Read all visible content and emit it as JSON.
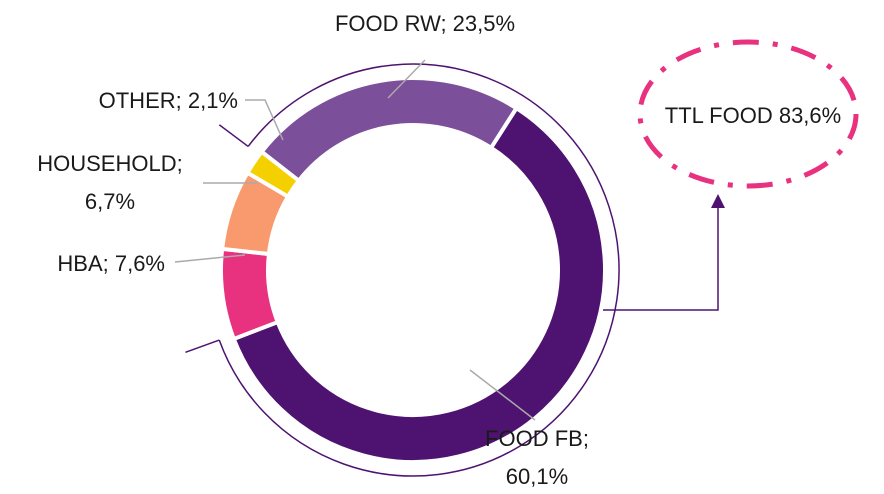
{
  "chart_data": {
    "type": "donut",
    "values": [
      23.5,
      60.1,
      7.6,
      6.7,
      2.1
    ],
    "value_labels": [
      "FOOD RW; 23,5%",
      "FOOD FB; 60,1%",
      "HBA; 7,6%",
      "HOUSEHOLD; 6,7%",
      "OTHER; 2,1%"
    ],
    "colors": [
      "#7b4f9a",
      "#4e1370",
      "#e8317f",
      "#f99a6e",
      "#f5d000"
    ],
    "annotation": "TTL FOOD 83,6%",
    "annotation_color": "#e8317f"
  }
}
